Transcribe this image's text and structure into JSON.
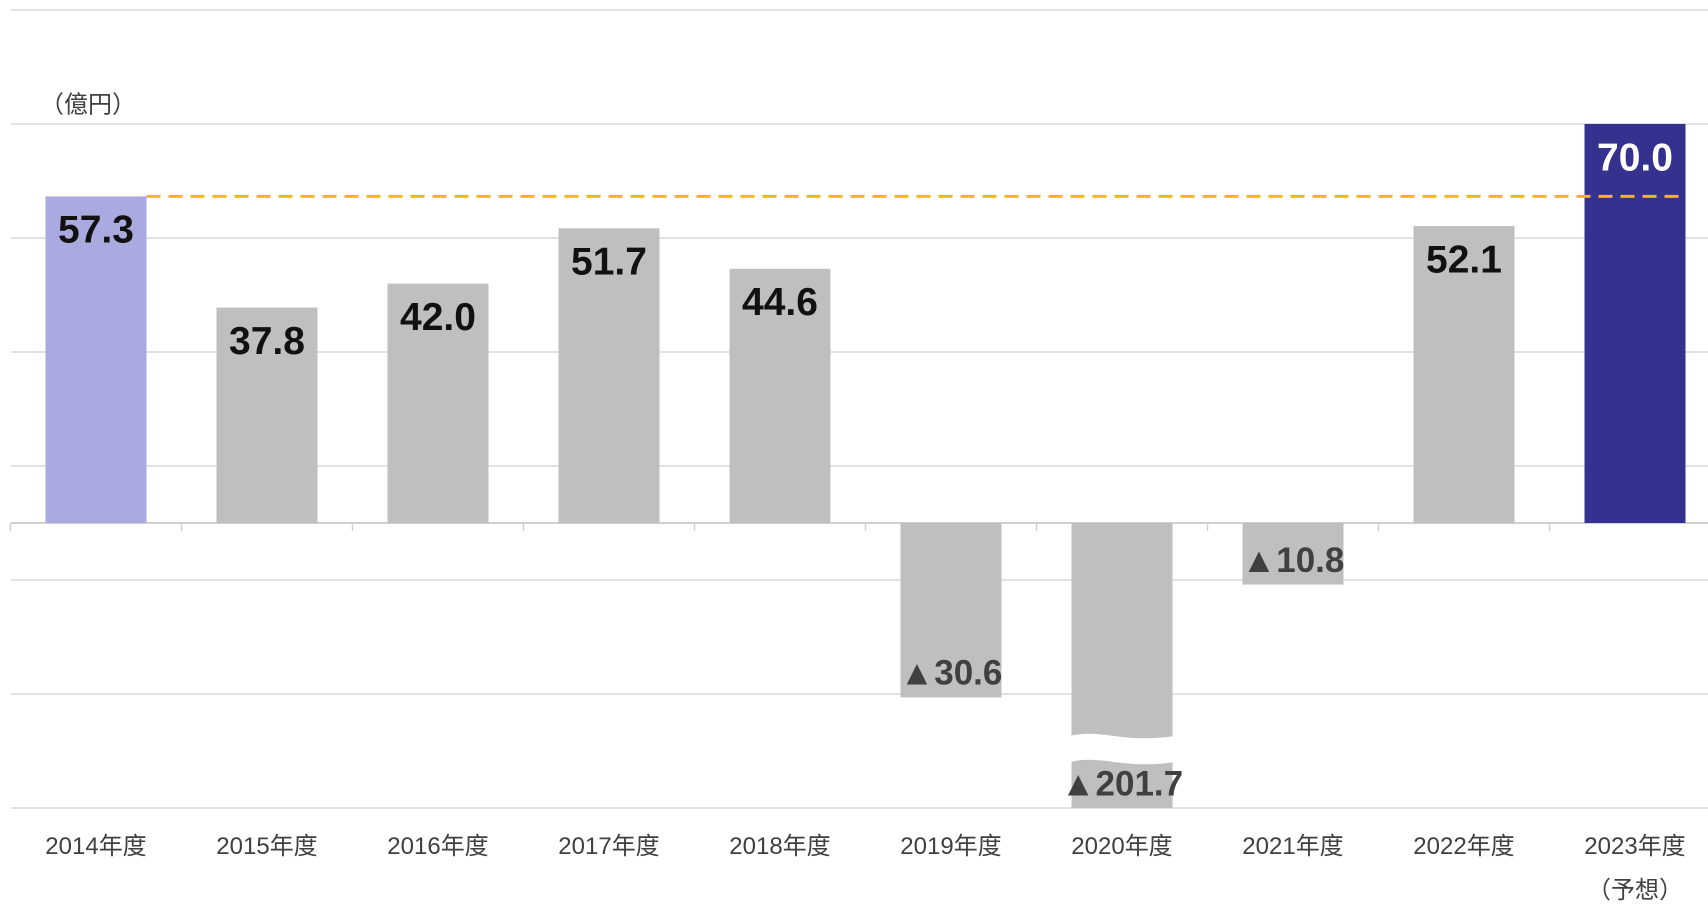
{
  "chart_data": {
    "type": "bar",
    "unit_label": "（億円）",
    "categories": [
      "2014年度",
      "2015年度",
      "2016年度",
      "2017年度",
      "2018年度",
      "2019年度",
      "2020年度",
      "2021年度",
      "2022年度",
      "2023年度\n（予想）"
    ],
    "values": [
      57.3,
      37.8,
      42.0,
      51.7,
      44.6,
      -30.6,
      -201.7,
      -10.8,
      52.1,
      70.0
    ],
    "value_labels": [
      "57.3",
      "37.8",
      "42.0",
      "51.7",
      "44.6",
      "▲30.6",
      "▲201.7",
      "▲10.8",
      "52.1",
      "70.0"
    ],
    "colors": [
      "#aaaae0",
      "#bfbfbf",
      "#bfbfbf",
      "#bfbfbf",
      "#bfbfbf",
      "#bfbfbf",
      "#bfbfbf",
      "#bfbfbf",
      "#bfbfbf",
      "#35318f"
    ],
    "reference_color": "#fbb615",
    "ylim": [
      -50,
      90
    ],
    "yticks": [
      -50,
      -30,
      -10,
      10,
      30,
      50,
      70,
      90
    ],
    "grid": true
  }
}
